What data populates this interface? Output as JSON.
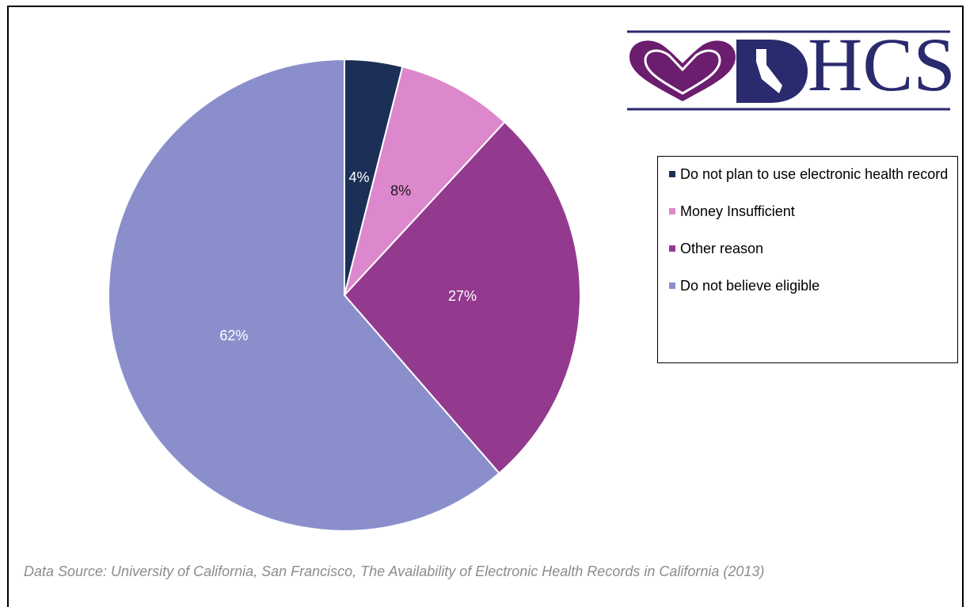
{
  "logo_text": "HCS",
  "chart_data": {
    "type": "pie",
    "categories": [
      "Do not plan to use electronic health record",
      "Money Insufficient",
      "Other reason",
      "Do not believe eligible"
    ],
    "values": [
      4,
      8,
      27,
      62
    ],
    "value_labels": [
      "4%",
      "8%",
      "27%",
      "62%"
    ],
    "colors": [
      "#1b2f57",
      "#dd88cc",
      "#933a8f",
      "#8a8fcc"
    ],
    "label_colors": [
      "#ffffff",
      "#1a1a1a",
      "#ffffff",
      "#ffffff"
    ],
    "legend": "right",
    "source": "Data Source: University of California, San Francisco, The Availability of Electronic Health Records in California (2013)"
  }
}
